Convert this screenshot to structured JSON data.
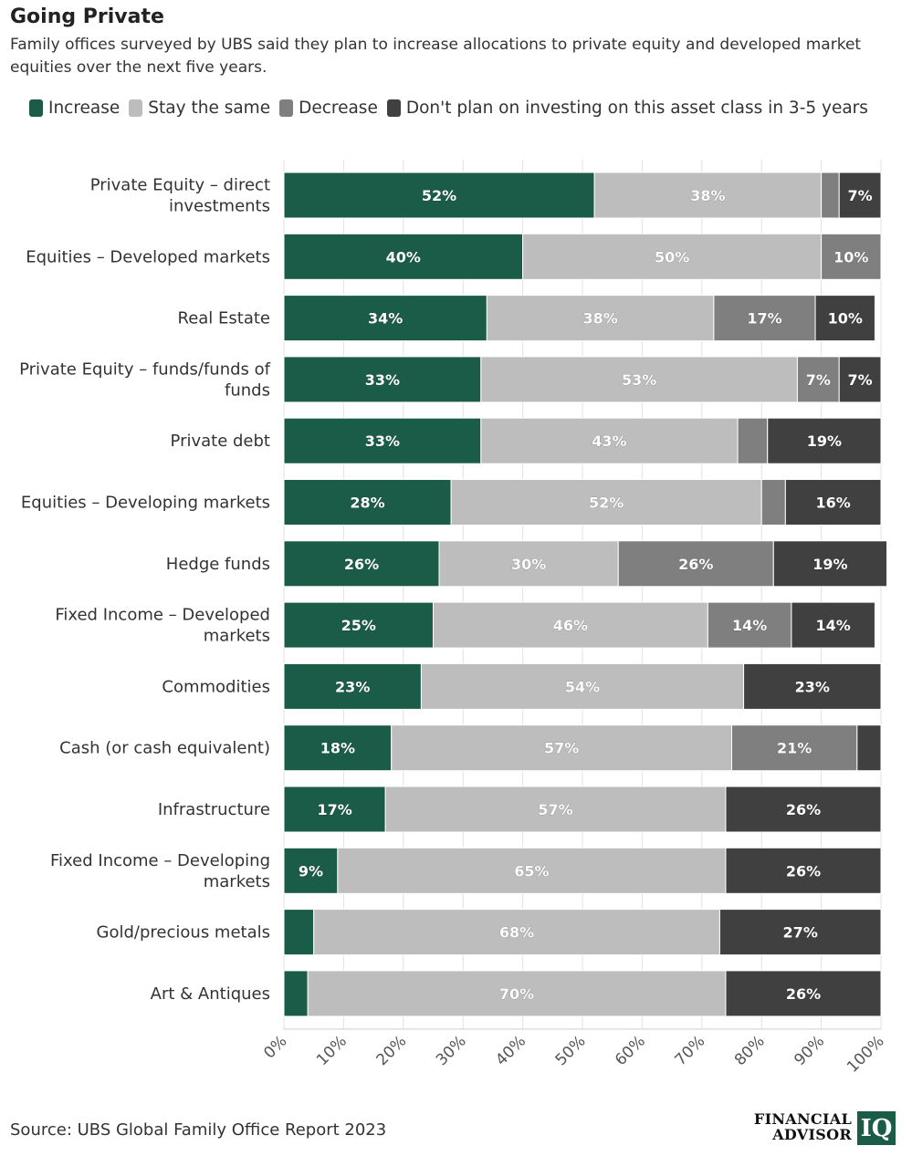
{
  "chart_data": {
    "type": "bar",
    "orientation": "horizontal",
    "stacked": true,
    "title": "Going Private",
    "subtitle": "Family offices surveyed by UBS said they plan to increase allocations to private equity and developed market equities over the next five years.",
    "categories": [
      "Private Equity – direct investments",
      "Equities – Developed markets",
      "Real Estate",
      "Private Equity – funds/funds of funds",
      "Private debt",
      "Equities – Developing markets",
      "Hedge funds",
      "Fixed Income – Developed markets",
      "Commodities",
      "Cash (or cash equivalent)",
      "Infrastructure",
      "Fixed Income – Developing markets",
      "Gold/precious metals",
      "Art & Antiques"
    ],
    "category_lines": [
      [
        "Private Equity – direct",
        "investments"
      ],
      [
        "Equities – Developed markets"
      ],
      [
        "Real Estate"
      ],
      [
        "Private Equity – funds/funds of",
        "funds"
      ],
      [
        "Private debt"
      ],
      [
        "Equities – Developing markets"
      ],
      [
        "Hedge funds"
      ],
      [
        "Fixed Income – Developed",
        "markets"
      ],
      [
        "Commodities"
      ],
      [
        "Cash (or cash equivalent)"
      ],
      [
        "Infrastructure"
      ],
      [
        "Fixed Income – Developing",
        "markets"
      ],
      [
        "Gold/precious metals"
      ],
      [
        "Art & Antiques"
      ]
    ],
    "series": [
      {
        "name": "Increase",
        "color": "#1b5c48",
        "values": [
          52,
          40,
          34,
          33,
          33,
          28,
          26,
          25,
          23,
          18,
          17,
          9,
          5,
          4
        ]
      },
      {
        "name": "Stay the same",
        "color": "#bdbdbd",
        "values": [
          38,
          50,
          38,
          53,
          43,
          52,
          30,
          46,
          54,
          57,
          57,
          65,
          68,
          70
        ]
      },
      {
        "name": "Decrease",
        "color": "#7f7f7f",
        "values": [
          3,
          10,
          17,
          7,
          5,
          4,
          26,
          14,
          0,
          21,
          0,
          0,
          0,
          0
        ]
      },
      {
        "name": "Don't plan on investing on this asset class in 3-5 years",
        "color": "#404040",
        "values": [
          7,
          0,
          10,
          7,
          19,
          16,
          19,
          14,
          23,
          4,
          26,
          26,
          27,
          26
        ]
      }
    ],
    "data_labels": [
      [
        "52%",
        "38%",
        "",
        "7%"
      ],
      [
        "40%",
        "50%",
        "10%",
        ""
      ],
      [
        "34%",
        "38%",
        "17%",
        "10%"
      ],
      [
        "33%",
        "53%",
        "7%",
        "7%"
      ],
      [
        "33%",
        "43%",
        "",
        "19%"
      ],
      [
        "28%",
        "52%",
        "",
        "16%"
      ],
      [
        "26%",
        "30%",
        "26%",
        "19%"
      ],
      [
        "25%",
        "46%",
        "14%",
        "14%"
      ],
      [
        "23%",
        "54%",
        "",
        "23%"
      ],
      [
        "18%",
        "57%",
        "21%",
        ""
      ],
      [
        "17%",
        "57%",
        "",
        "26%"
      ],
      [
        "9%",
        "65%",
        "",
        "26%"
      ],
      [
        "",
        "68%",
        "",
        "27%"
      ],
      [
        "",
        "70%",
        "",
        "26%"
      ]
    ],
    "xlim": [
      0,
      100
    ],
    "x_ticks": [
      "0%",
      "10%",
      "20%",
      "30%",
      "40%",
      "50%",
      "60%",
      "70%",
      "80%",
      "90%",
      "100%"
    ],
    "xlabel": "",
    "ylabel": "",
    "legend_position": "top",
    "grid": true
  },
  "source": "Source: UBS Global Family Office Report 2023",
  "logo": {
    "line1": "FINANCIAL",
    "line2": "ADVISOR",
    "mark": "IQ"
  }
}
